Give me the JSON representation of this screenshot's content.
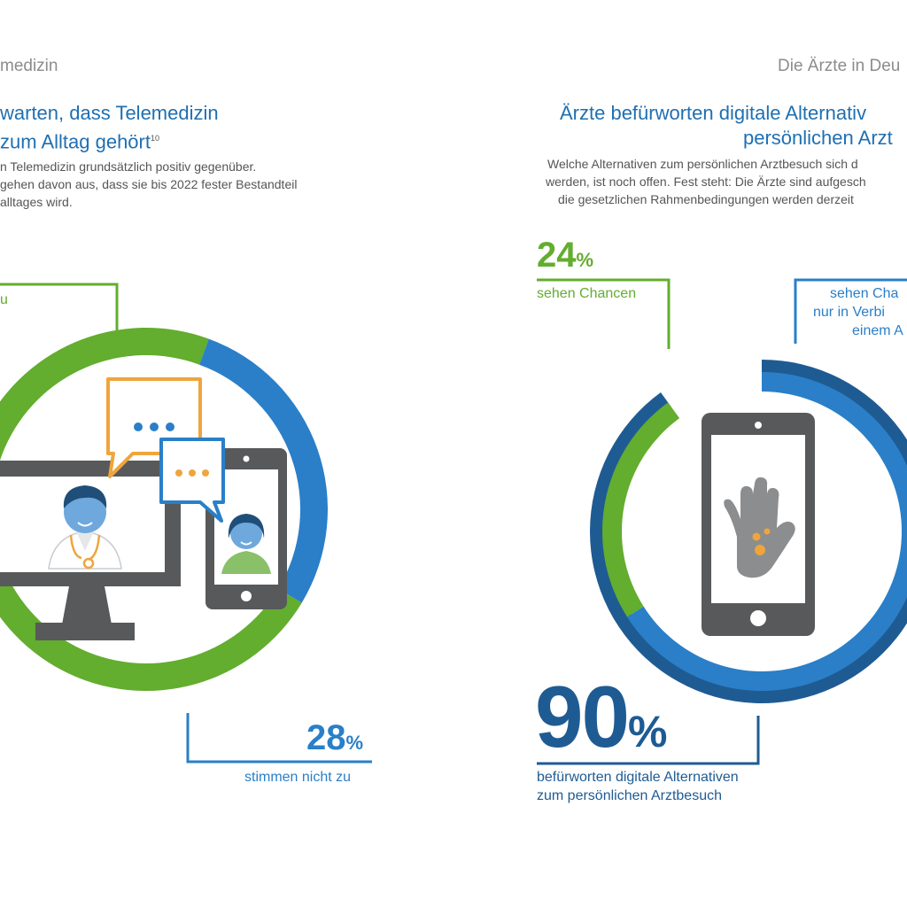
{
  "header": {
    "left": "medizin",
    "right": "Die Ärzte in Deu"
  },
  "left_panel": {
    "title_line1": "warten, dass Telemedizin",
    "title_line2": "zum Alltag gehört",
    "footnote": "10",
    "body_line1": "n Telemedizin grundsätzlich positiv gegenüber.",
    "body_line2": "gehen davon aus, dass sie bis 2022 fester Bestandteil",
    "body_line3": "alltages wird.",
    "green_label": "u",
    "blue_value": "28",
    "blue_unit": "%",
    "blue_caption": "stimmen nicht zu"
  },
  "right_panel": {
    "title_line1": "Ärzte befürworten digitale Alternativ",
    "title_line2": "persönlichen Arzt",
    "body_line1": "Welche Alternativen zum persönlichen Arztbesuch sich d",
    "body_line2": "werden, ist noch offen. Fest steht: Die Ärzte sind aufgesch",
    "body_line3": "die gesetzlichen Rahmenbedingungen werden derzeit",
    "green_value": "24",
    "green_unit": "%",
    "green_caption": "sehen Chancen",
    "blue_caption_line1": "sehen Cha",
    "blue_caption_line2": "nur in Verbi",
    "blue_caption_line3": "einem A",
    "total_value": "90",
    "total_unit": "%",
    "total_caption_line1": "befürworten digitale Alternativen",
    "total_caption_line2": "zum persönlichen Arztbesuch"
  },
  "colors": {
    "green": "#63ad2f",
    "blue": "#2a7fc8",
    "dark_blue": "#1f5b93",
    "orange": "#efa53c",
    "gray": "#58595b"
  },
  "icons": [
    "doctor-monitor-icon",
    "chat-bubble-icon",
    "patient-tablet-icon",
    "smartphone-icon",
    "hand-icon"
  ],
  "chart_data": [
    {
      "type": "pie",
      "labels": [
        "",
        "stimmen nicht zu"
      ],
      "values": [
        72,
        28
      ]
    },
    {
      "type": "pie",
      "labels": [
        "sehen Chancen",
        "sehen Chancen nur in Verbindung mit einem Arztbesuch"
      ],
      "values": [
        24,
        66
      ],
      "total": 90
    }
  ]
}
